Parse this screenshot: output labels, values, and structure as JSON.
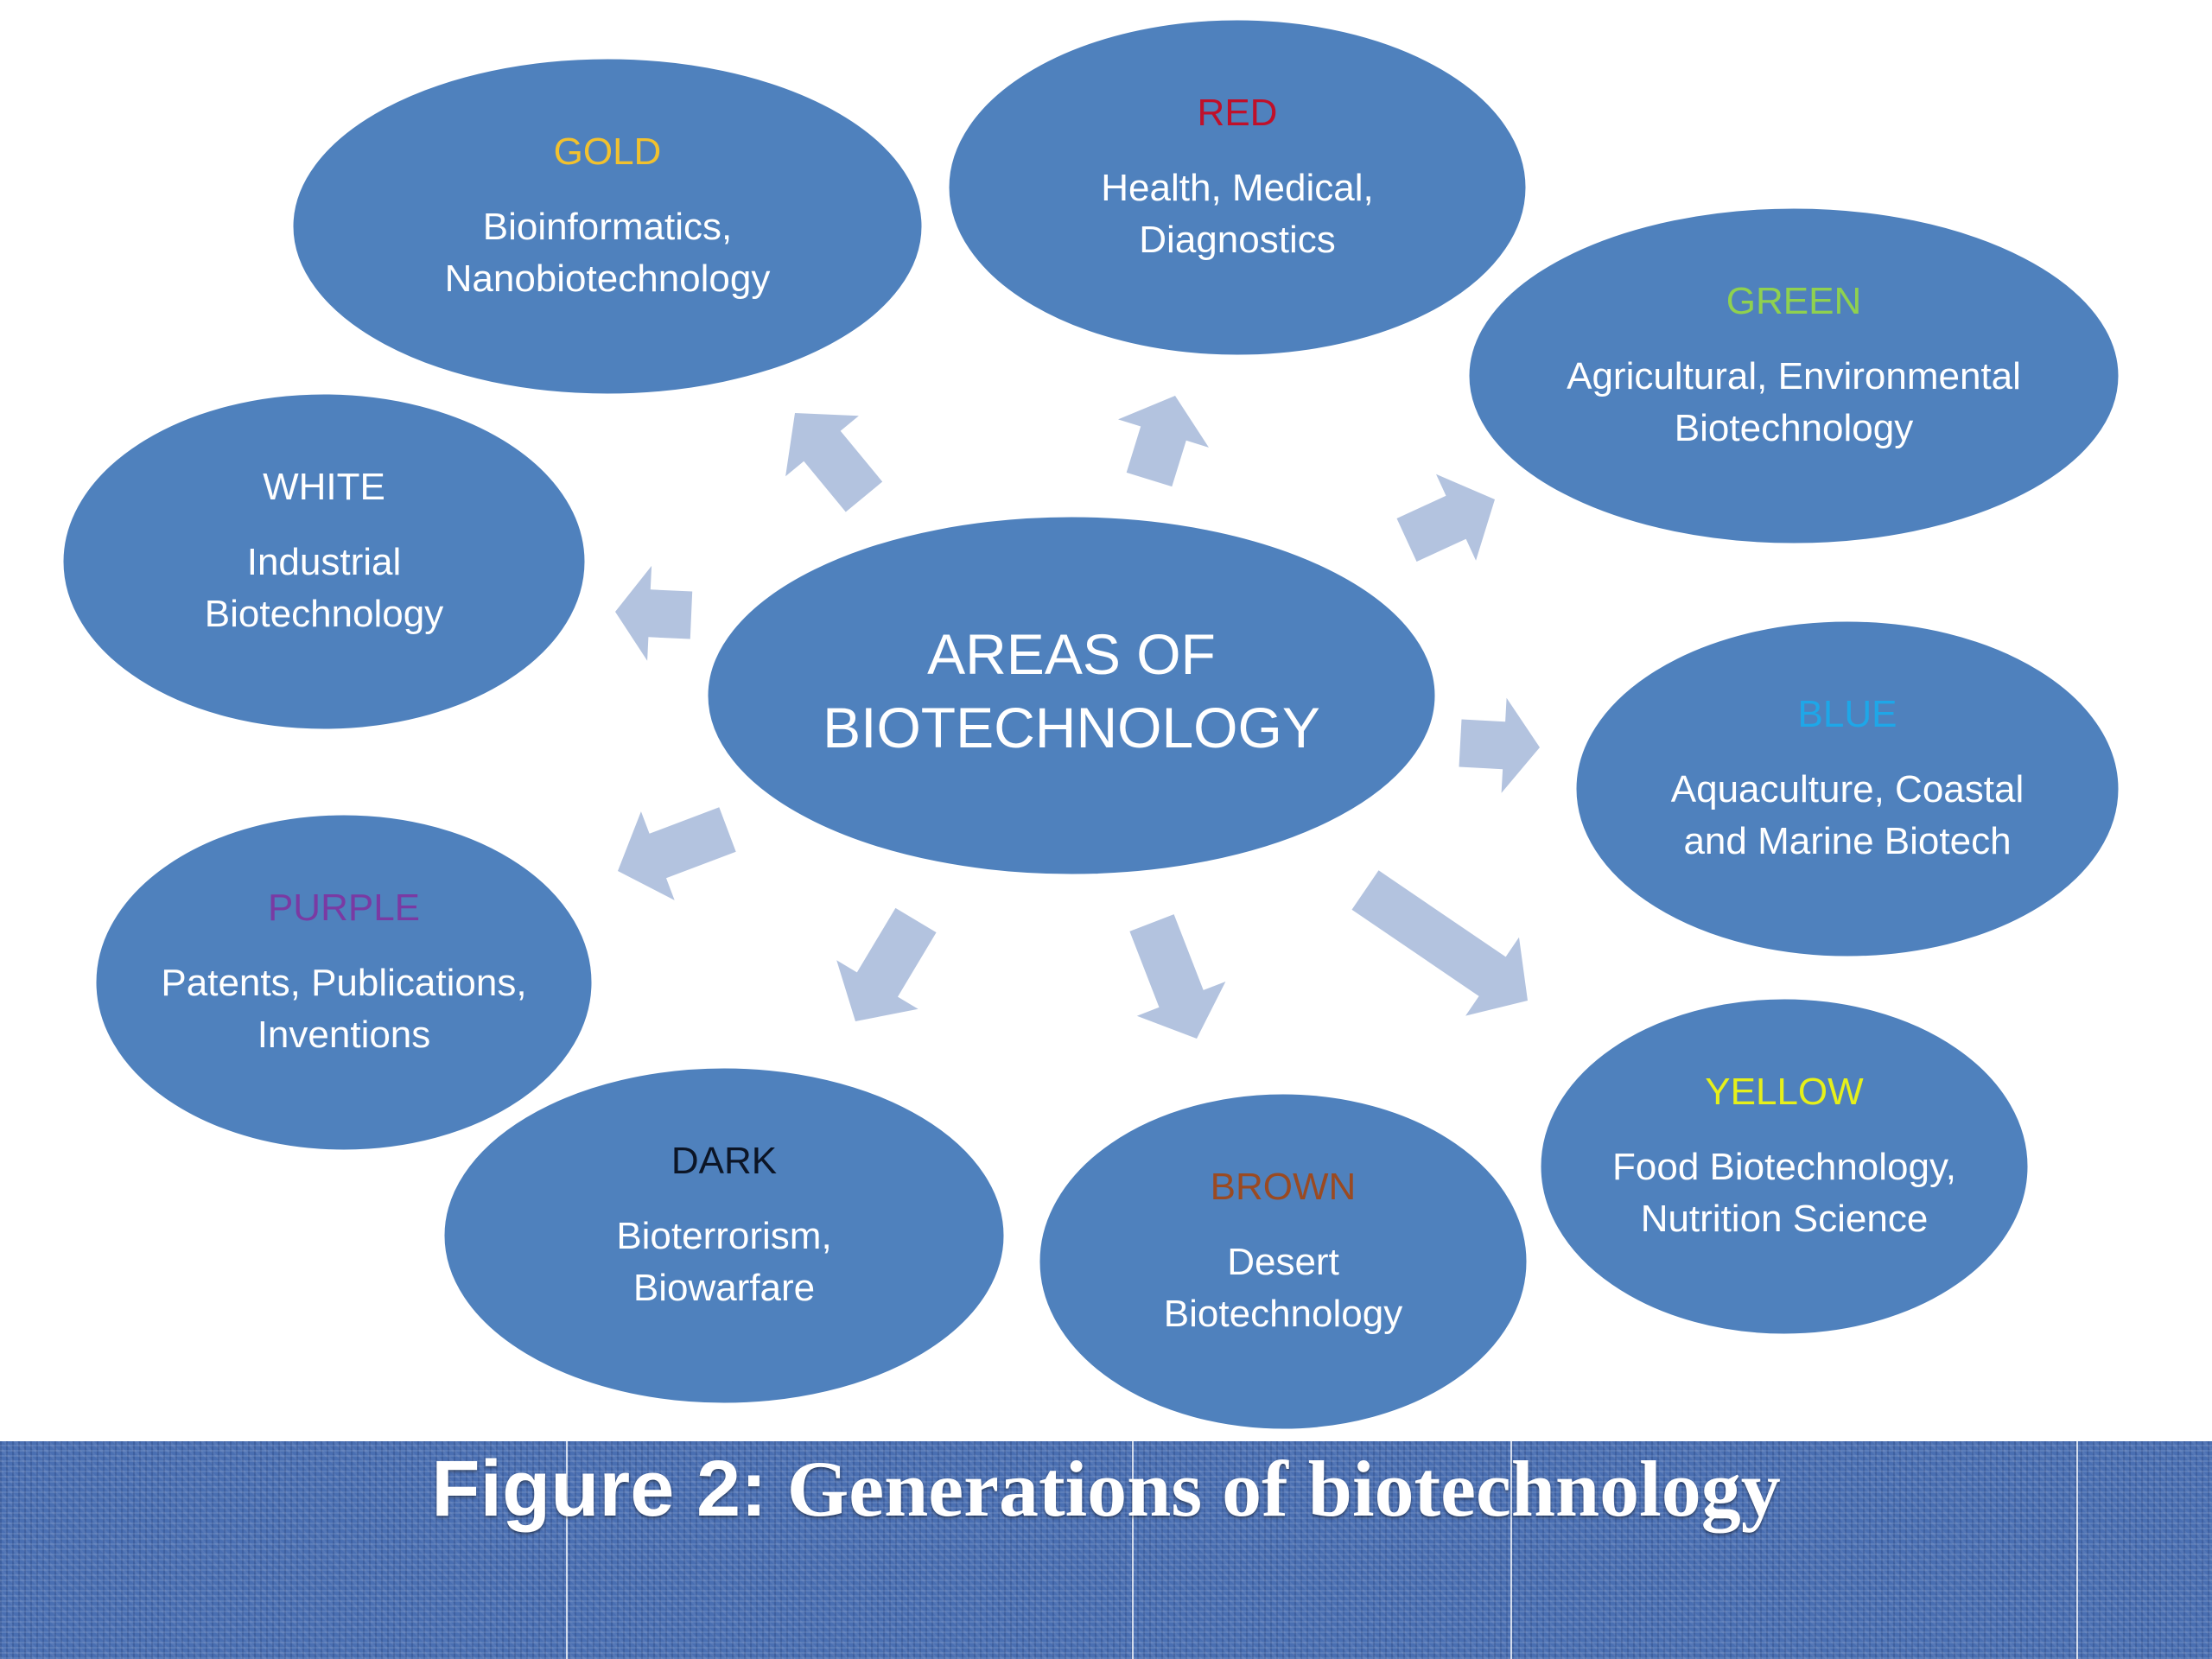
{
  "center": {
    "line1": "AREAS OF",
    "line2": "BIOTECHNOLOGY"
  },
  "nodes": [
    {
      "label": "GOLD",
      "label_color": "#f2c12e",
      "lines": [
        "Bioinformatics,",
        "Nanobiotechnology"
      ]
    },
    {
      "label": "RED",
      "label_color": "#c0102a",
      "lines": [
        "Health, Medical,",
        "Diagnostics"
      ]
    },
    {
      "label": "GREEN",
      "label_color": "#8fd14f",
      "lines": [
        "Agricultural, Environmental",
        "Biotechnology"
      ]
    },
    {
      "label": "WHITE",
      "label_color": "#ffffff",
      "lines": [
        "Industrial",
        "Biotechnology"
      ]
    },
    {
      "label": "BLUE",
      "label_color": "#1ea7e8",
      "lines": [
        "Aquaculture, Coastal",
        "and Marine Biotech"
      ]
    },
    {
      "label": "PURPLE",
      "label_color": "#7a3aa3",
      "lines": [
        "Patents, Publications,",
        "Inventions"
      ]
    },
    {
      "label": "YELLOW",
      "label_color": "#e6f01a",
      "lines": [
        "Food Biotechnology,",
        "Nutrition Science"
      ]
    },
    {
      "label": "DARK",
      "label_color": "#0c1526",
      "lines": [
        "Bioterrorism,",
        "Biowarfare"
      ]
    },
    {
      "label": "BROWN",
      "label_color": "#9a4a22",
      "lines": [
        "Desert",
        "Biotechnology"
      ]
    }
  ],
  "caption": {
    "prefix": "Figure 2:",
    "text": " Generations of biotechnology"
  },
  "colors": {
    "ellipse_fill": "#4f81bd",
    "ellipse_stroke": "#ffffff",
    "arrow_fill": "#b3c3df",
    "banner": "#4a6fb2"
  }
}
